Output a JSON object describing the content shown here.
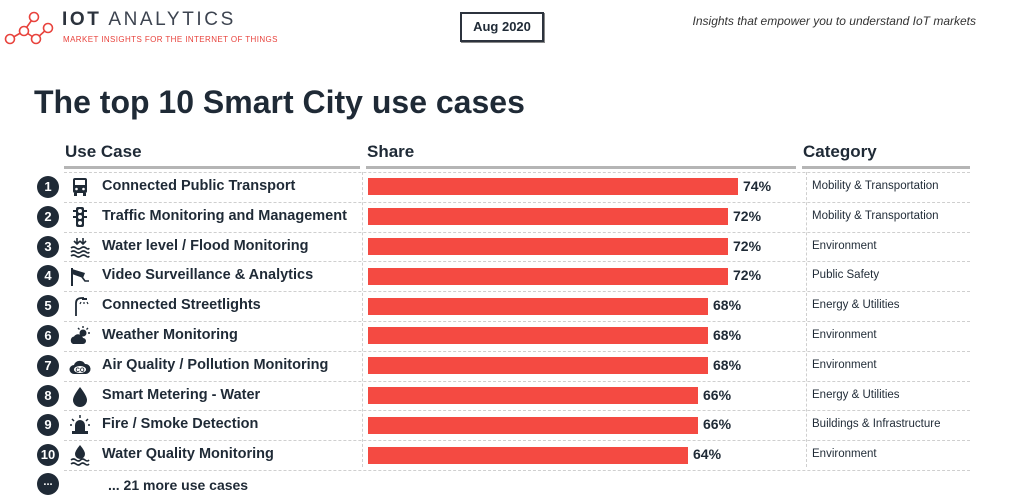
{
  "header": {
    "brand_name_bold": "IOT",
    "brand_name_rest": "ANALYTICS",
    "brand_tagline": "MARKET INSIGHTS FOR THE INTERNET OF THINGS",
    "date": "Aug 2020",
    "slogan": "Insights that empower you to understand IoT markets"
  },
  "colors": {
    "bar": "#f44a42",
    "text": "#1f2a36",
    "accent": "#e8433d",
    "badge": "#1f2a36"
  },
  "chart_data": {
    "type": "bar",
    "orientation": "horizontal",
    "title": "The top 10 Smart City use cases",
    "columns": {
      "use_case": "Use Case",
      "share": "Share",
      "category": "Category"
    },
    "value_suffix": "%",
    "xlim": [
      0,
      100
    ],
    "rows": [
      {
        "rank": "1",
        "label": "Connected Public Transport",
        "value": 74,
        "value_label": "74%",
        "category": "Mobility & Transportation",
        "icon": "bus-icon"
      },
      {
        "rank": "2",
        "label": "Traffic Monitoring and Management",
        "value": 72,
        "value_label": "72%",
        "category": "Mobility & Transportation",
        "icon": "traffic-light-icon"
      },
      {
        "rank": "3",
        "label": "Water level / Flood Monitoring",
        "value": 72,
        "value_label": "72%",
        "category": "Environment",
        "icon": "flood-icon"
      },
      {
        "rank": "4",
        "label": "Video Surveillance & Analytics",
        "value": 72,
        "value_label": "72%",
        "category": "Public Safety",
        "icon": "cctv-camera-icon"
      },
      {
        "rank": "5",
        "label": "Connected Streetlights",
        "value": 68,
        "value_label": "68%",
        "category": "Energy & Utilities",
        "icon": "streetlight-icon"
      },
      {
        "rank": "6",
        "label": "Weather Monitoring",
        "value": 68,
        "value_label": "68%",
        "category": "Environment",
        "icon": "weather-icon"
      },
      {
        "rank": "7",
        "label": "Air Quality / Pollution Monitoring",
        "value": 68,
        "value_label": "68%",
        "category": "Environment",
        "icon": "co2-cloud-icon"
      },
      {
        "rank": "8",
        "label": "Smart Metering - Water",
        "value": 66,
        "value_label": "66%",
        "category": "Energy & Utilities",
        "icon": "water-drop-icon"
      },
      {
        "rank": "9",
        "label": "Fire / Smoke Detection",
        "value": 66,
        "value_label": "66%",
        "category": "Buildings & Infrastructure",
        "icon": "alarm-siren-icon"
      },
      {
        "rank": "10",
        "label": "Water Quality Monitoring",
        "value": 64,
        "value_label": "64%",
        "category": "Environment",
        "icon": "water-quality-icon"
      }
    ],
    "more": {
      "badge": "...",
      "label": "... 21 more use cases"
    }
  }
}
